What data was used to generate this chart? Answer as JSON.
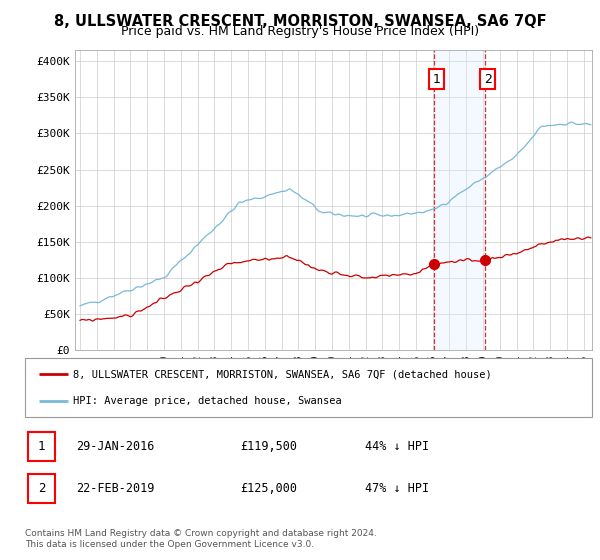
{
  "title": "8, ULLSWATER CRESCENT, MORRISTON, SWANSEA, SA6 7QF",
  "subtitle": "Price paid vs. HM Land Registry's House Price Index (HPI)",
  "title_fontsize": 10.5,
  "subtitle_fontsize": 9,
  "ylabel_ticks": [
    "£0",
    "£50K",
    "£100K",
    "£150K",
    "£200K",
    "£250K",
    "£300K",
    "£350K",
    "£400K"
  ],
  "ytick_values": [
    0,
    50000,
    100000,
    150000,
    200000,
    250000,
    300000,
    350000,
    400000
  ],
  "ylim": [
    0,
    415000
  ],
  "xlim_start": 1994.7,
  "xlim_end": 2025.5,
  "hpi_color": "#7ab8d9",
  "price_color": "#cc0000",
  "sale1_date": 2016.08,
  "sale1_price": 119500,
  "sale2_date": 2019.13,
  "sale2_price": 125000,
  "vline_color": "#cc0000",
  "shade_color": "#ddeeff",
  "legend_house_label": "8, ULLSWATER CRESCENT, MORRISTON, SWANSEA, SA6 7QF (detached house)",
  "legend_hpi_label": "HPI: Average price, detached house, Swansea",
  "background_color": "#ffffff",
  "grid_color": "#cccccc",
  "footnote": "Contains HM Land Registry data © Crown copyright and database right 2024.\nThis data is licensed under the Open Government Licence v3.0."
}
